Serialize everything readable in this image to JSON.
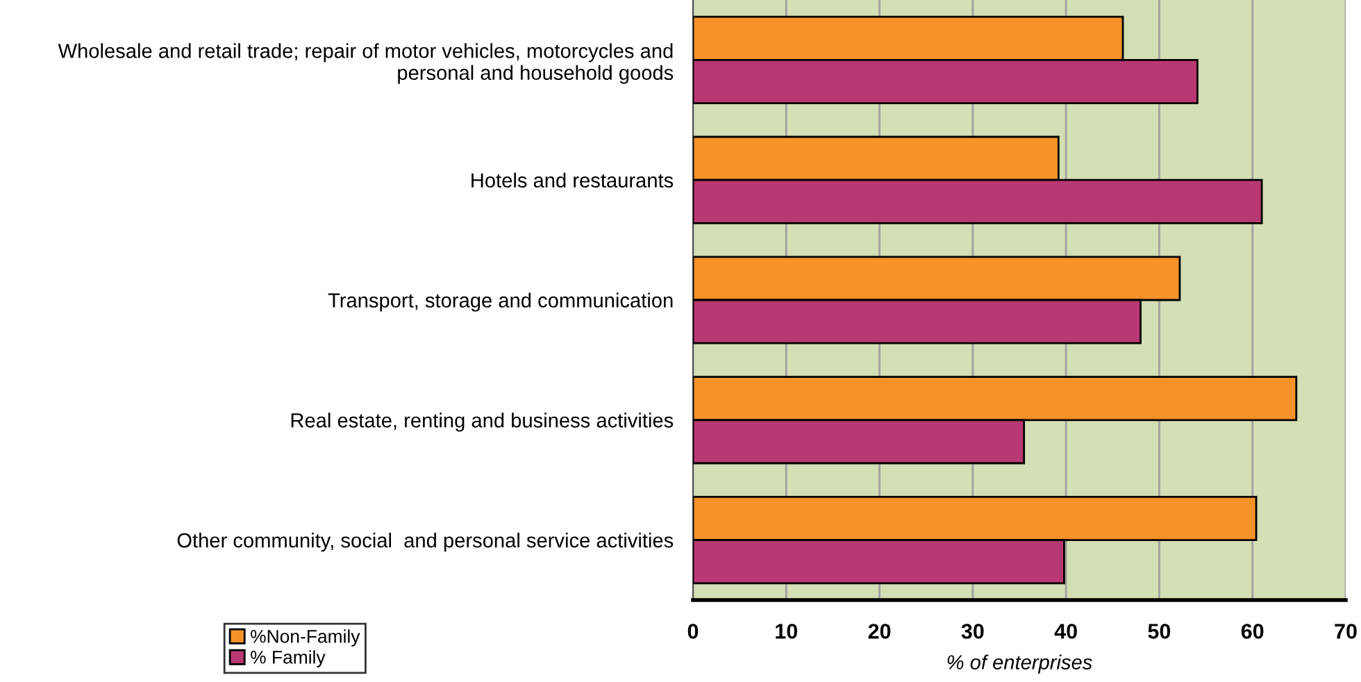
{
  "chart_data": {
    "type": "bar",
    "orientation": "horizontal",
    "xlabel": "% of enterprises",
    "categories": [
      "Wholesale and retail trade; repair of motor vehicles, motorcycles and\npersonal and household goods",
      "Hotels and restaurants",
      "Transport, storage and communication",
      "Real estate, renting and business activities",
      "Other community, social  and personal service activities"
    ],
    "series": [
      {
        "name": "%Non-Family",
        "color": "#f7922a",
        "values": [
          46.1,
          39.2,
          52.2,
          64.7,
          60.4
        ]
      },
      {
        "name": "% Family",
        "color": "#b73872",
        "values": [
          54.1,
          61.0,
          48.0,
          35.5,
          39.8
        ]
      }
    ],
    "xlim": [
      0,
      70
    ],
    "xticks": [
      0,
      10,
      20,
      30,
      40,
      50,
      60,
      70
    ],
    "grid": "x",
    "legend": "bottom left"
  }
}
